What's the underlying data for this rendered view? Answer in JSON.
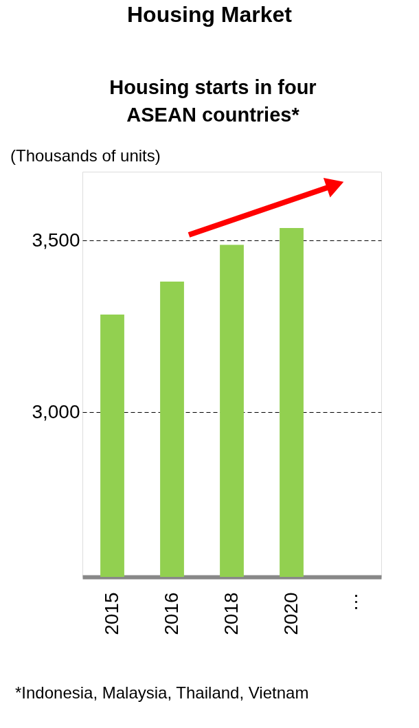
{
  "chart_data": {
    "type": "bar",
    "title": "Housing Market",
    "subtitle": "Housing starts in four ASEAN countries*",
    "ylabel": "(Thousands of units)",
    "categories": [
      "2015",
      "2016",
      "2018",
      "2020",
      "…"
    ],
    "values": [
      3284,
      3380,
      3487,
      3536,
      null
    ],
    "color": "#92d050",
    "ylim": [
      2520,
      3700
    ],
    "yticks": [
      {
        "value": 3000,
        "label": "3,000"
      },
      {
        "value": 3500,
        "label": "3,500"
      }
    ],
    "grid": "y",
    "line_style": "dashed",
    "annotations": [
      "*Indonesia, Malaysia, Thailand, Vietnam"
    ]
  }
}
